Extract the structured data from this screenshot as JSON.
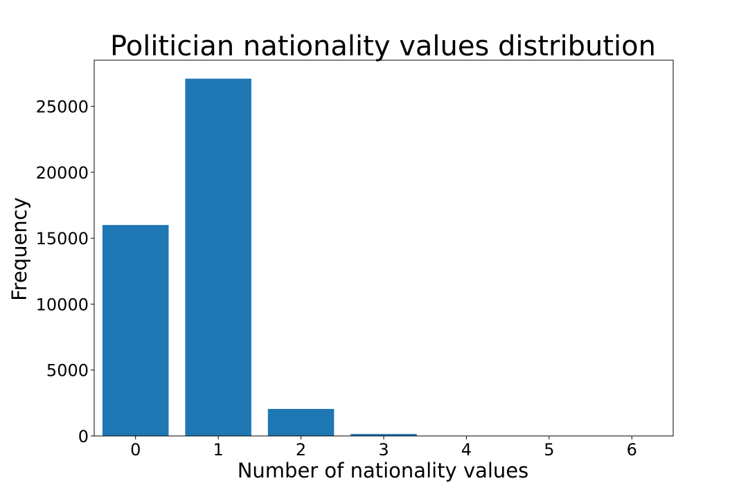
{
  "chart_data": {
    "type": "bar",
    "title": "Politician nationality values distribution",
    "xlabel": "Number of nationality values",
    "ylabel": "Frequency",
    "categories": [
      "0",
      "1",
      "2",
      "3",
      "4",
      "5",
      "6"
    ],
    "values": [
      16000,
      27100,
      2050,
      150,
      10,
      2,
      1
    ],
    "x_ticks": [
      "0",
      "1",
      "2",
      "3",
      "4",
      "5",
      "6"
    ],
    "y_ticks": [
      "0",
      "5000",
      "10000",
      "15000",
      "20000",
      "25000"
    ],
    "ylim": [
      0,
      28500
    ],
    "xlim": [
      -0.5,
      6.5
    ],
    "grid": false,
    "bar_color": "#1f77b4"
  }
}
